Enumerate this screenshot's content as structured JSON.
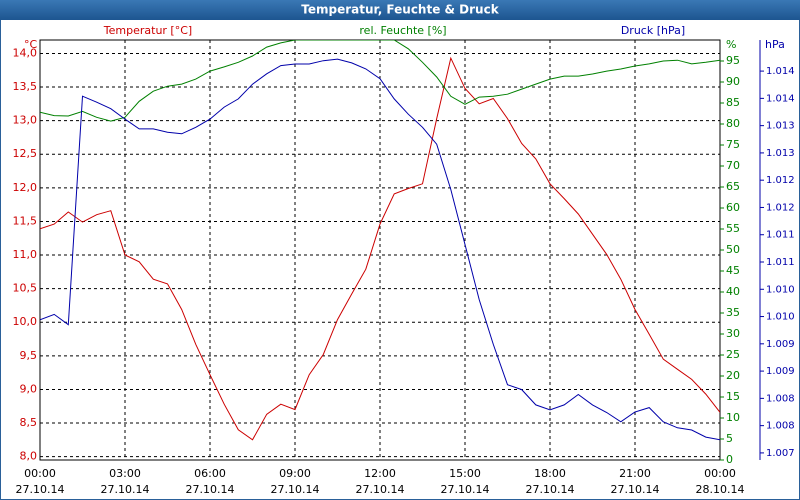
{
  "chart_data": {
    "type": "line",
    "title": "Temperatur, Feuchte & Druck",
    "y_label": "Temperatur [°C]",
    "y2_label": "rel. Feuchte [%]",
    "y3_label": "Druck [hPa]",
    "y_unit": "°C",
    "y2_unit": "%",
    "y3_unit": "hPa",
    "x": [
      0,
      0.5,
      1,
      1.5,
      2,
      2.5,
      3,
      3.5,
      4,
      4.5,
      5,
      5.5,
      6,
      6.5,
      7,
      7.5,
      8,
      8.5,
      9,
      9.5,
      10,
      10.5,
      11,
      11.5,
      12,
      12.5,
      13,
      13.5,
      14,
      14.5,
      15,
      15.5,
      16,
      16.5,
      17,
      17.5,
      18,
      18.5,
      19,
      19.5,
      20,
      20.5,
      21,
      21.5,
      22,
      22.5,
      23,
      23.5,
      24
    ],
    "xlim": [
      0,
      24
    ],
    "xticks": [
      {
        "value": 0,
        "label": "00:00"
      },
      {
        "value": 3,
        "label": "03:00"
      },
      {
        "value": 6,
        "label": "06:00"
      },
      {
        "value": 9,
        "label": "09:00"
      },
      {
        "value": 12,
        "label": "12:00"
      },
      {
        "value": 15,
        "label": "15:00"
      },
      {
        "value": 18,
        "label": "18:00"
      },
      {
        "value": 21,
        "label": "21:00"
      },
      {
        "value": 24,
        "label": "00:00"
      }
    ],
    "xtick_dates": [
      "27.10.14",
      "27.10.14",
      "27.10.14",
      "27.10.14",
      "27.10.14",
      "27.10.14",
      "27.10.14",
      "27.10.14",
      "28.10.14"
    ],
    "ylim": [
      7.95,
      14.2
    ],
    "yticks": [
      {
        "value": 8,
        "label": "8,0"
      },
      {
        "value": 8.5,
        "label": "8,5"
      },
      {
        "value": 9,
        "label": "9,0"
      },
      {
        "value": 9.5,
        "label": "9,5"
      },
      {
        "value": 10,
        "label": "10,0"
      },
      {
        "value": 10.5,
        "label": "10,5"
      },
      {
        "value": 11,
        "label": "11,0"
      },
      {
        "value": 11.5,
        "label": "11,5"
      },
      {
        "value": 12,
        "label": "12,0"
      },
      {
        "value": 12.5,
        "label": "12,5"
      },
      {
        "value": 13,
        "label": "13,0"
      },
      {
        "value": 13.5,
        "label": "13,5"
      },
      {
        "value": 14,
        "label": "14,0"
      }
    ],
    "y2lim": [
      0,
      100
    ],
    "y2ticks": [
      0,
      5,
      10,
      15,
      20,
      25,
      30,
      35,
      40,
      45,
      50,
      55,
      60,
      65,
      70,
      75,
      80,
      85,
      90,
      95
    ],
    "y3lim": [
      1006.87,
      1014.57
    ],
    "y3ticks": [
      {
        "value": 1007,
        "label": "1.007"
      },
      {
        "value": 1007.5,
        "label": "1.008"
      },
      {
        "value": 1008,
        "label": "1.008"
      },
      {
        "value": 1008.5,
        "label": "1.009"
      },
      {
        "value": 1009,
        "label": "1.009"
      },
      {
        "value": 1009.5,
        "label": "1.010"
      },
      {
        "value": 1010,
        "label": "1.010"
      },
      {
        "value": 1010.5,
        "label": "1.011"
      },
      {
        "value": 1011,
        "label": "1.011"
      },
      {
        "value": 1011.5,
        "label": "1.012"
      },
      {
        "value": 1012,
        "label": "1.012"
      },
      {
        "value": 1012.5,
        "label": "1.013"
      },
      {
        "value": 1013,
        "label": "1.013"
      },
      {
        "value": 1013.5,
        "label": "1.014"
      },
      {
        "value": 1014,
        "label": "1.014"
      }
    ],
    "grid": true,
    "series": [
      {
        "name": "Temperatur",
        "axis": "y",
        "color": "#cc0000",
        "values": [
          11.39,
          11.46,
          11.64,
          11.49,
          11.6,
          11.66,
          11.0,
          10.9,
          10.64,
          10.57,
          10.19,
          9.67,
          9.22,
          8.78,
          8.4,
          8.25,
          8.63,
          8.78,
          8.7,
          9.22,
          9.52,
          10.04,
          10.42,
          10.79,
          11.46,
          11.91,
          11.99,
          12.06,
          13.03,
          13.93,
          13.48,
          13.25,
          13.33,
          13.03,
          12.66,
          12.43,
          12.06,
          11.84,
          11.61,
          11.31,
          11.01,
          10.64,
          10.19,
          9.82,
          9.45,
          9.3,
          9.15,
          8.93,
          8.66
        ]
      },
      {
        "name": "rel. Feuchte",
        "axis": "y2",
        "color": "#008000",
        "values": [
          82.8,
          82,
          81.9,
          83,
          81.6,
          80.7,
          81.6,
          85.4,
          87.8,
          89,
          89.5,
          90.7,
          92.6,
          93.6,
          94.7,
          96.2,
          98.3,
          99.3,
          100,
          100,
          100,
          100,
          100,
          100,
          100,
          100,
          97.9,
          94.7,
          91.2,
          86.6,
          84.7,
          86.4,
          86.6,
          87.1,
          88.3,
          89.5,
          90.7,
          91.4,
          91.4,
          91.9,
          92.6,
          93.1,
          93.8,
          94.3,
          95,
          95.2,
          94.3,
          94.7,
          95.2
        ]
      },
      {
        "name": "Druck",
        "axis": "y3",
        "color": "#0000aa",
        "values": [
          1009.44,
          1009.54,
          1009.35,
          1013.54,
          1013.43,
          1013.31,
          1013.12,
          1012.94,
          1012.94,
          1012.88,
          1012.85,
          1012.97,
          1013.12,
          1013.34,
          1013.49,
          1013.76,
          1013.95,
          1014.1,
          1014.13,
          1014.13,
          1014.19,
          1014.22,
          1014.15,
          1014.04,
          1013.86,
          1013.49,
          1013.21,
          1012.97,
          1012.66,
          1011.83,
          1010.82,
          1009.81,
          1008.99,
          1008.25,
          1008.16,
          1007.88,
          1007.79,
          1007.88,
          1008.07,
          1007.88,
          1007.74,
          1007.57,
          1007.75,
          1007.83,
          1007.57,
          1007.46,
          1007.42,
          1007.29,
          1007.24
        ]
      }
    ]
  }
}
